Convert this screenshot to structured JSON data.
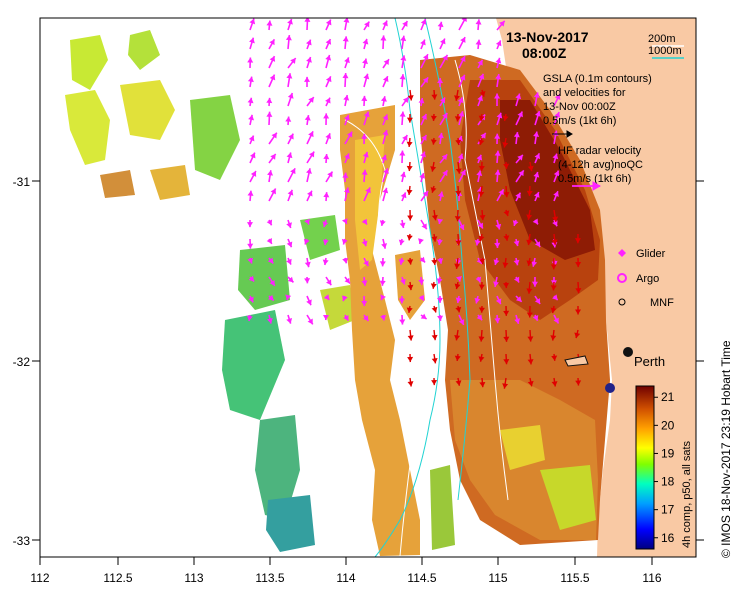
{
  "map": {
    "title_date": "13-Nov-2017",
    "title_time": "08:00Z",
    "credit": "© IMOS 18-Nov-2017 23:19 Hobart Time",
    "x_ticks": [
      "112",
      "112.5",
      "113",
      "113.5",
      "114",
      "114.5",
      "115",
      "115.5",
      "116"
    ],
    "y_ticks": [
      "-31",
      "-32",
      "-33"
    ],
    "city_label": "Perth",
    "colors": {
      "land": "#f9c9a4",
      "contour_200m": "#ffffff",
      "contour_1000m": "#22d3d3",
      "radar": "#ff22ff",
      "gsla": "#e00000"
    }
  },
  "legend": {
    "contour_200m": "200m",
    "contour_1000m": "1000m",
    "gsla_lines": [
      "GSLA (0.1m contours)",
      "and velocities for",
      "13-Nov 00:00Z",
      "0.5m/s (1kt 6h)"
    ],
    "radar_lines": [
      "HF radar velocity",
      "(4-12h avg)noQC",
      "0.5m/s (1kt 6h)"
    ],
    "markers": [
      "Glider",
      "Argo",
      "MNF"
    ]
  },
  "colorbar": {
    "title": "4h comp, p50, all sats",
    "ticks": [
      16,
      17,
      18,
      19,
      20,
      21
    ],
    "min": 15.6,
    "max": 21.4
  }
}
